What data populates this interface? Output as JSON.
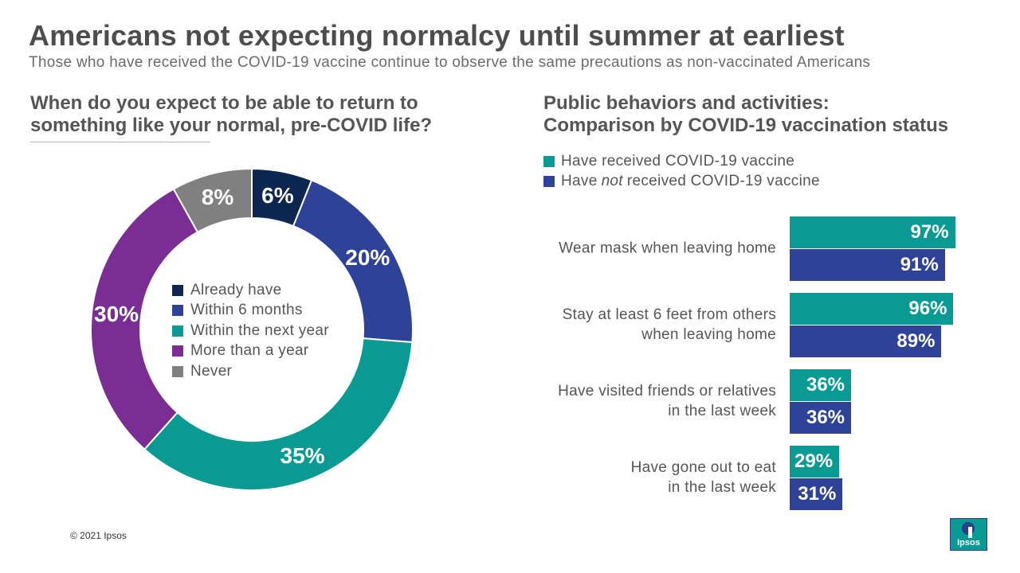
{
  "header": {
    "title": "Americans not expecting normalcy until summer at earliest",
    "subtitle": "Those who have received the COVID-19 vaccine continue to observe the same precautions as non-vaccinated Americans"
  },
  "left": {
    "heading_line1": "When do you expect to be able to return to",
    "heading_line2": "something like your normal, pre-COVID life?"
  },
  "right": {
    "heading_line1": "Public behaviors and activities:",
    "heading_line2": "Comparison by COVID-19 vaccination status",
    "legend": {
      "vaccinated": "Have received COVID-19 vaccine",
      "not_prefix": "Have",
      "not_emph": "not",
      "not_suffix": "received COVID-19 vaccine"
    }
  },
  "footer": {
    "copyright": "© 2021 Ipsos"
  },
  "logo": {
    "text": "Ipsos"
  },
  "chart_data": [
    {
      "type": "pie",
      "subtype": "donut",
      "title": "When do you expect to be able to return to something like your normal, pre-COVID life?",
      "slices": [
        {
          "label": "Already have",
          "value": 6,
          "display": "6%",
          "color": "#0d2752"
        },
        {
          "label": "Within 6 months",
          "value": 20,
          "display": "20%",
          "color": "#2e4397"
        },
        {
          "label": "Within the next year",
          "value": 35,
          "display": "35%",
          "color": "#0a9a94"
        },
        {
          "label": "More than a year",
          "value": 30,
          "display": "30%",
          "color": "#7a2e93"
        },
        {
          "label": "Never",
          "value": 8,
          "display": "8%",
          "color": "#808080"
        }
      ],
      "legend_position": "center"
    },
    {
      "type": "bar",
      "orientation": "horizontal",
      "title": "Public behaviors and activities: Comparison by COVID-19 vaccination status",
      "categories": [
        [
          "Wear mask when leaving home"
        ],
        [
          "Stay at least 6 feet from others",
          "when leaving home"
        ],
        [
          "Have visited friends or relatives",
          "in the last week"
        ],
        [
          "Have gone out to eat",
          "in the last week"
        ]
      ],
      "series": [
        {
          "name": "Have received COVID-19 vaccine",
          "color": "#0a9a94",
          "values": [
            97,
            96,
            36,
            29
          ],
          "labels": [
            "97%",
            "96%",
            "36%",
            "29%"
          ]
        },
        {
          "name": "Have not received COVID-19 vaccine",
          "color": "#2e4397",
          "values": [
            91,
            89,
            36,
            31
          ],
          "labels": [
            "91%",
            "89%",
            "36%",
            "31%"
          ]
        }
      ],
      "xlim": [
        0,
        100
      ],
      "legend_position": "top-left"
    }
  ]
}
